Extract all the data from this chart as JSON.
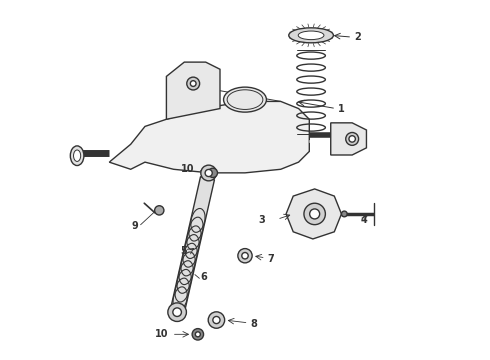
{
  "bg_color": "#ffffff",
  "line_color": "#333333",
  "label_color": "#000000",
  "figsize": [
    4.9,
    3.6
  ],
  "dpi": 100
}
